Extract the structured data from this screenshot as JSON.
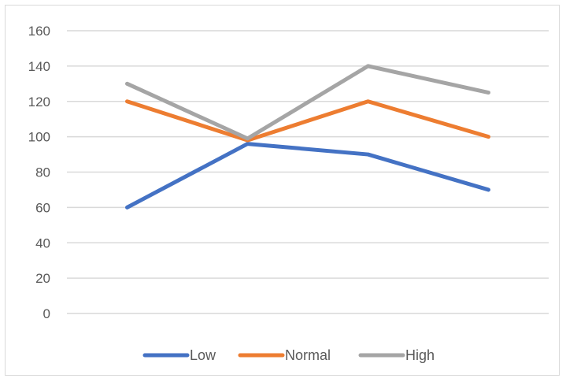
{
  "chart_data": {
    "type": "line",
    "title": "",
    "xlabel": "",
    "ylabel": "",
    "categories": [
      "",
      "",
      "",
      ""
    ],
    "ylim": [
      0,
      160
    ],
    "yticks": [
      0,
      20,
      40,
      60,
      80,
      100,
      120,
      140,
      160
    ],
    "grid": true,
    "legend": "bottom",
    "series": [
      {
        "name": "Low",
        "color": "#4472C4",
        "values": [
          60,
          96,
          90,
          70
        ]
      },
      {
        "name": "Normal",
        "color": "#ED7D31",
        "values": [
          120,
          98,
          120,
          100
        ]
      },
      {
        "name": "High",
        "color": "#A5A5A5",
        "values": [
          130,
          99,
          140,
          125
        ]
      }
    ]
  }
}
